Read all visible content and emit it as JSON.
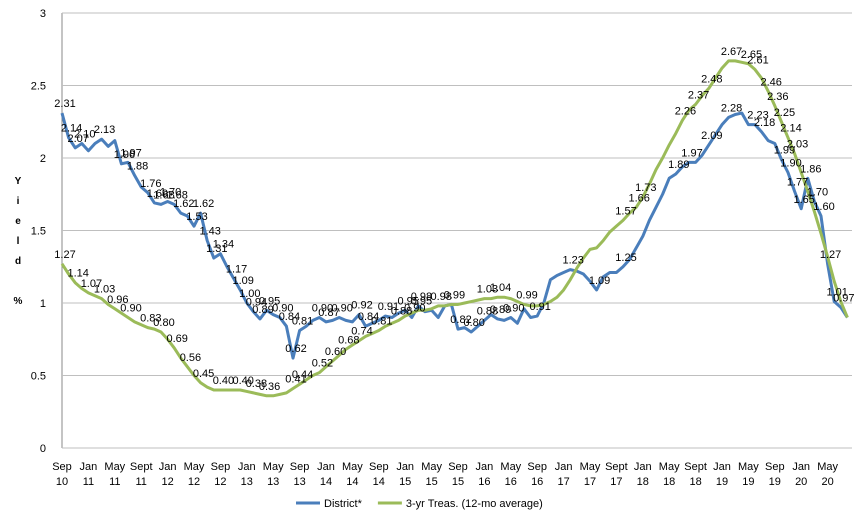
{
  "chart_data": {
    "type": "line",
    "y_label": "Yield %",
    "categories": [
      [
        "Sep",
        "10"
      ],
      null,
      null,
      null,
      [
        "Jan",
        "11"
      ],
      null,
      null,
      null,
      [
        "May",
        "11"
      ],
      null,
      null,
      null,
      [
        "Sept",
        "11"
      ],
      null,
      null,
      null,
      [
        "Jan",
        "12"
      ],
      null,
      null,
      null,
      [
        "May",
        "12"
      ],
      null,
      null,
      null,
      [
        "Sep",
        "12"
      ],
      null,
      null,
      null,
      [
        "Jan",
        "13"
      ],
      null,
      null,
      null,
      [
        "May",
        "13"
      ],
      null,
      null,
      null,
      [
        "Sep",
        "13"
      ],
      null,
      null,
      null,
      [
        "Jan",
        "14"
      ],
      null,
      null,
      null,
      [
        "May",
        "14"
      ],
      null,
      null,
      null,
      [
        "Sep",
        "14"
      ],
      null,
      null,
      null,
      [
        "Jan",
        "15"
      ],
      null,
      null,
      null,
      [
        "May",
        "15"
      ],
      null,
      null,
      null,
      [
        "Sep",
        "15"
      ],
      null,
      null,
      null,
      [
        "Jan",
        "16"
      ],
      null,
      null,
      null,
      [
        "May",
        "16"
      ],
      null,
      null,
      null,
      [
        "Sep",
        "16"
      ],
      null,
      null,
      null,
      [
        "Jan",
        "17"
      ],
      null,
      null,
      null,
      [
        "May",
        "17"
      ],
      null,
      null,
      null,
      [
        "Sept",
        "17"
      ],
      null,
      null,
      null,
      [
        "Jan",
        "18"
      ],
      null,
      null,
      null,
      [
        "May",
        "18"
      ],
      null,
      null,
      null,
      [
        "Sept",
        "18"
      ],
      null,
      null,
      null,
      [
        "Jan",
        "19"
      ],
      null,
      null,
      null,
      [
        "May",
        "19"
      ],
      null,
      null,
      null,
      [
        "Sep",
        "19"
      ],
      null,
      null,
      null,
      [
        "Jan",
        "20"
      ],
      null,
      null,
      null,
      [
        "May",
        "20"
      ],
      null,
      null,
      null
    ],
    "series": [
      {
        "name": "District*",
        "color": "#4a7ebb",
        "values": [
          2.31,
          2.14,
          2.07,
          2.1,
          2.05,
          2.1,
          2.13,
          2.08,
          2.12,
          1.96,
          1.97,
          1.88,
          1.8,
          1.76,
          1.69,
          1.68,
          1.7,
          1.68,
          1.62,
          1.6,
          1.53,
          1.62,
          1.43,
          1.31,
          1.34,
          1.25,
          1.17,
          1.09,
          1.0,
          0.94,
          0.89,
          0.95,
          0.92,
          0.9,
          0.84,
          0.62,
          0.81,
          0.84,
          0.88,
          0.9,
          0.87,
          0.88,
          0.9,
          0.88,
          0.87,
          0.92,
          0.84,
          0.86,
          0.88,
          0.91,
          0.9,
          0.93,
          0.95,
          0.9,
          0.98,
          0.94,
          0.95,
          0.9,
          0.98,
          0.99,
          0.82,
          0.83,
          0.8,
          0.84,
          0.88,
          0.92,
          0.89,
          0.88,
          0.9,
          0.86,
          0.96,
          0.9,
          0.91,
          1.0,
          1.16,
          1.19,
          1.21,
          1.23,
          1.22,
          1.2,
          1.15,
          1.09,
          1.18,
          1.21,
          1.21,
          1.25,
          1.3,
          1.38,
          1.46,
          1.57,
          1.66,
          1.75,
          1.86,
          1.89,
          1.94,
          1.97,
          1.97,
          2.02,
          2.09,
          2.16,
          2.23,
          2.28,
          2.3,
          2.31,
          2.23,
          2.23,
          2.18,
          2.12,
          2.1,
          1.99,
          1.9,
          1.77,
          1.65,
          1.86,
          1.7,
          1.6,
          1.27,
          1.01,
          0.97,
          0.9
        ],
        "value_labels": [
          "2.31",
          "2.14",
          "2.07",
          "2.10",
          null,
          null,
          "2.13",
          null,
          null,
          "1.96",
          "1.97",
          "1.88",
          null,
          "1.76",
          "1.69",
          "1.68",
          "1.70",
          "1.68",
          "1.62",
          null,
          "1.53",
          "1.62",
          "1.43",
          "1.31",
          "1.34",
          null,
          "1.17",
          "1.09",
          "1.00",
          "0.94",
          "0.89",
          "0.95",
          null,
          "0.90",
          "0.84",
          "0.62",
          "0.81",
          null,
          null,
          "0.90",
          "0.87",
          null,
          "0.90",
          null,
          null,
          "0.92",
          "0.84",
          null,
          null,
          "0.91",
          null,
          null,
          "0.95",
          "0.90",
          "0.98",
          null,
          null,
          null,
          null,
          "0.99",
          "0.82",
          null,
          "0.80",
          null,
          "0.88",
          null,
          "0.89",
          null,
          "0.90",
          null,
          null,
          null,
          "0.91",
          null,
          null,
          null,
          null,
          "1.23",
          null,
          null,
          null,
          "1.09",
          null,
          null,
          null,
          "1.25",
          null,
          null,
          null,
          null,
          null,
          null,
          null,
          "1.89",
          null,
          "1.97",
          null,
          null,
          "2.09",
          null,
          null,
          "2.28",
          null,
          null,
          null,
          "2.23",
          "2.18",
          null,
          null,
          "1.99",
          "1.90",
          "1.77",
          "1.65",
          "1.86",
          "1.70",
          "1.60",
          "1.27",
          "1.01",
          "0.97",
          null
        ]
      },
      {
        "name": "3-yr Treas. (12-mo average)",
        "color": "#9bbb59",
        "values": [
          1.27,
          1.2,
          1.14,
          1.1,
          1.07,
          1.05,
          1.03,
          0.99,
          0.96,
          0.93,
          0.9,
          0.87,
          0.85,
          0.83,
          0.82,
          0.8,
          0.75,
          0.69,
          0.62,
          0.56,
          0.5,
          0.45,
          0.42,
          0.4,
          0.4,
          0.4,
          0.4,
          0.4,
          0.39,
          0.38,
          0.37,
          0.36,
          0.36,
          0.37,
          0.38,
          0.41,
          0.44,
          0.47,
          0.5,
          0.52,
          0.56,
          0.6,
          0.64,
          0.68,
          0.71,
          0.74,
          0.77,
          0.79,
          0.81,
          0.84,
          0.86,
          0.88,
          0.91,
          0.93,
          0.95,
          0.95,
          0.96,
          0.98,
          0.98,
          0.99,
          0.99,
          1.0,
          1.01,
          1.02,
          1.03,
          1.03,
          1.04,
          1.04,
          1.03,
          1.01,
          0.99,
          0.98,
          0.98,
          0.99,
          1.01,
          1.04,
          1.09,
          1.16,
          1.24,
          1.31,
          1.37,
          1.38,
          1.43,
          1.49,
          1.53,
          1.57,
          1.62,
          1.66,
          1.73,
          1.82,
          1.92,
          2.0,
          2.09,
          2.17,
          2.26,
          2.33,
          2.37,
          2.43,
          2.48,
          2.55,
          2.62,
          2.67,
          2.67,
          2.66,
          2.65,
          2.61,
          2.55,
          2.46,
          2.36,
          2.25,
          2.14,
          2.03,
          1.9,
          1.77,
          1.63,
          1.48,
          1.32,
          1.15,
          1.01,
          0.9
        ],
        "value_labels": [
          "1.27",
          null,
          "1.14",
          null,
          "1.07",
          null,
          "1.03",
          null,
          "0.96",
          null,
          "0.90",
          null,
          null,
          "0.83",
          null,
          "0.80",
          null,
          "0.69",
          null,
          "0.56",
          null,
          "0.45",
          null,
          null,
          "0.40",
          null,
          null,
          "0.40",
          null,
          "0.38",
          null,
          "0.36",
          null,
          null,
          null,
          "0.41",
          "0.44",
          null,
          null,
          "0.52",
          null,
          "0.60",
          null,
          "0.68",
          null,
          "0.74",
          null,
          null,
          "0.81",
          null,
          null,
          "0.88",
          null,
          null,
          "0.95",
          null,
          null,
          "0.98",
          null,
          null,
          null,
          null,
          null,
          null,
          "1.03",
          null,
          "1.04",
          null,
          null,
          null,
          "0.99",
          null,
          null,
          null,
          null,
          null,
          null,
          null,
          null,
          null,
          null,
          null,
          null,
          null,
          null,
          "1.57",
          null,
          "1.66",
          "1.73",
          null,
          null,
          null,
          null,
          null,
          "2.26",
          null,
          "2.37",
          null,
          "2.48",
          null,
          null,
          "2.67",
          null,
          null,
          "2.65",
          "2.61",
          null,
          "2.46",
          "2.36",
          "2.25",
          "2.14",
          "2.03",
          null,
          null,
          null,
          null,
          null,
          null,
          null,
          null
        ]
      }
    ],
    "ylim": [
      0,
      3
    ],
    "yticks": [
      0,
      0.5,
      1,
      1.5,
      2,
      2.5,
      3
    ],
    "grid": true,
    "legend": "bottom"
  }
}
